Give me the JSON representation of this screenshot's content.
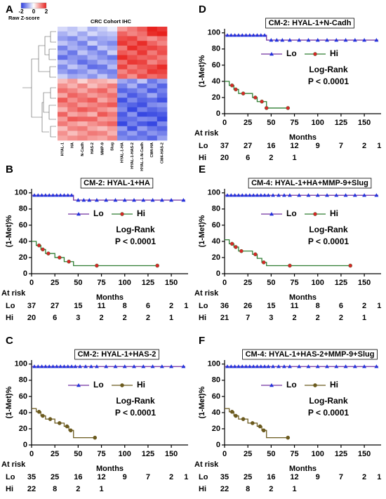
{
  "chart_data": [
    {
      "type": "heatmap",
      "panel": "A",
      "title": "CRC Cohort IHC",
      "colorbar_label": "Raw Z-score",
      "colorbar_ticks": [
        -2,
        0,
        2
      ],
      "zlim": [
        -2,
        2
      ],
      "colors": [
        "#2c3ee0",
        "#ffffff",
        "#e8221e"
      ],
      "columns": [
        "HYAL-1",
        "HA",
        "N-Cadh",
        "HAS-2",
        "MMP-9",
        "Slug",
        "HYAL-1-HA",
        "HYAL-1-HAS-2",
        "HYAL-1-N-Cadh",
        "CM4-HA",
        "CM4-HAS-2"
      ],
      "rows": [
        null,
        null,
        null,
        null,
        null,
        null,
        null,
        null,
        null,
        null,
        null,
        null,
        null,
        null,
        null,
        null,
        null,
        null,
        null,
        null,
        null,
        null,
        null,
        null
      ],
      "values": [
        [
          -0.4,
          -0.6,
          -0.3,
          -0.8,
          -0.5,
          -0.2,
          0.9,
          1.2,
          1.5,
          2.0,
          1.8
        ],
        [
          -0.8,
          -0.5,
          -0.9,
          -0.4,
          -0.7,
          -0.6,
          1.4,
          1.1,
          1.3,
          1.9,
          2.0
        ],
        [
          -1.0,
          -1.2,
          -0.7,
          -1.1,
          -0.9,
          -0.8,
          1.6,
          1.7,
          1.2,
          1.0,
          1.3
        ],
        [
          -0.6,
          -0.9,
          -1.3,
          -0.5,
          -1.0,
          -1.2,
          1.8,
          1.5,
          1.9,
          1.4,
          1.1
        ],
        [
          -1.3,
          -0.8,
          -1.0,
          -1.4,
          -0.6,
          -0.9,
          1.2,
          1.9,
          1.6,
          1.7,
          1.5
        ],
        [
          -0.9,
          -1.4,
          -0.6,
          -1.0,
          -1.3,
          -0.5,
          1.5,
          1.3,
          1.8,
          1.2,
          1.6
        ],
        [
          -1.5,
          -1.1,
          -1.2,
          -0.8,
          -1.1,
          -1.4,
          1.9,
          1.6,
          1.4,
          1.5,
          1.2
        ],
        [
          -0.7,
          -1.0,
          -1.5,
          -1.2,
          -0.8,
          -1.0,
          1.3,
          1.8,
          1.7,
          1.1,
          1.4
        ],
        [
          -1.2,
          -0.6,
          -0.9,
          -1.5,
          -1.4,
          -0.7,
          1.7,
          1.2,
          1.5,
          1.6,
          1.9
        ],
        [
          -1.0,
          -1.3,
          -1.1,
          -0.7,
          -1.2,
          -1.3,
          1.1,
          1.5,
          1.3,
          1.8,
          1.7
        ],
        [
          -0.5,
          -0.9,
          -0.8,
          -1.1,
          -0.6,
          -1.1,
          1.4,
          1.0,
          1.6,
          1.3,
          1.5
        ],
        [
          0.6,
          0.9,
          0.4,
          0.8,
          0.7,
          0.5,
          -0.9,
          -1.2,
          -0.6,
          -1.4,
          -1.0
        ],
        [
          1.0,
          0.7,
          1.1,
          0.6,
          0.9,
          1.2,
          -1.3,
          -0.8,
          -1.5,
          -1.1,
          -1.6
        ],
        [
          1.3,
          1.1,
          0.8,
          1.2,
          1.4,
          0.9,
          -1.6,
          -1.4,
          -1.1,
          -1.7,
          -1.3
        ],
        [
          0.8,
          1.4,
          1.2,
          0.9,
          1.1,
          1.3,
          -1.1,
          -1.7,
          -1.4,
          -0.9,
          -1.5
        ],
        [
          1.5,
          1.0,
          1.3,
          1.5,
          0.8,
          1.1,
          -1.8,
          -1.2,
          -1.6,
          -1.5,
          -1.8
        ],
        [
          1.1,
          1.3,
          0.9,
          1.1,
          1.3,
          1.5,
          -1.4,
          -1.6,
          -1.8,
          -1.2,
          -1.1
        ],
        [
          0.7,
          1.2,
          1.5,
          1.3,
          1.0,
          0.8,
          -1.2,
          -1.9,
          -1.3,
          -1.6,
          -1.4
        ],
        [
          1.4,
          0.8,
          1.0,
          0.7,
          1.5,
          1.2,
          -1.7,
          -1.1,
          -1.9,
          -1.8,
          -1.7
        ],
        [
          0.9,
          1.5,
          1.4,
          1.4,
          0.9,
          1.0,
          -1.5,
          -1.5,
          -1.2,
          -1.3,
          -1.9
        ],
        [
          1.2,
          0.9,
          0.7,
          1.0,
          1.2,
          1.4,
          -1.9,
          -1.3,
          -1.7,
          -1.9,
          -1.2
        ],
        [
          0.6,
          1.1,
          1.2,
          0.8,
          0.6,
          0.9,
          -1.0,
          -1.8,
          -1.0,
          -1.4,
          -1.6
        ],
        [
          1.0,
          0.6,
          0.9,
          1.2,
          1.1,
          0.7,
          -1.4,
          -1.0,
          -1.5,
          -1.1,
          -1.3
        ],
        [
          0.8,
          1.0,
          1.1,
          0.9,
          0.8,
          1.1,
          -1.2,
          -1.4,
          -1.3,
          -1.6,
          -1.0
        ]
      ]
    },
    {
      "type": "km",
      "panel": "B",
      "title": "CM-2: HYAL-1+HA",
      "ylabel": "(1-Met)%",
      "xlabel": "Months",
      "xlim": [
        0,
        168
      ],
      "ylim": [
        0,
        105
      ],
      "xticks": [
        0,
        25,
        50,
        75,
        100,
        125,
        150
      ],
      "yticks": [
        0,
        20,
        40,
        60,
        80,
        100
      ],
      "series": [
        {
          "name": "Lo",
          "color": "#7030a0",
          "marker_color": "#2233dd",
          "marker": "triangle",
          "x": [
            0,
            45,
            165
          ],
          "values": [
            97,
            91,
            91
          ],
          "censored_x": [
            3,
            7,
            11,
            15,
            19,
            23,
            27,
            31,
            35,
            39,
            43,
            50,
            56,
            62,
            70,
            80,
            90,
            100,
            110,
            120,
            130,
            140,
            150,
            163
          ]
        },
        {
          "name": "Hi",
          "color": "#2e7d32",
          "marker_color": "#d62728",
          "marker": "circle",
          "x": [
            0,
            5,
            10,
            15,
            25,
            35,
            45,
            135
          ],
          "values": [
            40,
            35,
            30,
            25,
            20,
            15,
            10,
            10
          ],
          "censored_x": [
            8,
            12,
            18,
            30,
            40,
            70,
            135
          ]
        }
      ],
      "annotations": [
        "Log-Rank",
        "P < 0.0001"
      ],
      "at_risk": {
        "label": "At risk",
        "rows": [
          {
            "name": "Lo",
            "counts": [
              37,
              27,
              15,
              11,
              8,
              6,
              2,
              1
            ]
          },
          {
            "name": "Hi",
            "counts": [
              20,
              6,
              3,
              2,
              2,
              2,
              1
            ]
          }
        ]
      }
    },
    {
      "type": "km",
      "panel": "C",
      "title": "CM-2: HYAL-1+HAS-2",
      "ylabel": "(1-Met)%",
      "xlabel": "Months",
      "xlim": [
        0,
        168
      ],
      "ylim": [
        0,
        105
      ],
      "xticks": [
        0,
        25,
        50,
        75,
        100,
        125,
        150
      ],
      "yticks": [
        0,
        20,
        40,
        60,
        80,
        100
      ],
      "series": [
        {
          "name": "Lo",
          "color": "#7030a0",
          "marker_color": "#2233dd",
          "marker": "triangle",
          "x": [
            0,
            165
          ],
          "values": [
            97,
            97
          ],
          "censored_x": [
            3,
            7,
            11,
            15,
            19,
            23,
            27,
            31,
            35,
            39,
            43,
            47,
            52,
            58,
            64,
            70,
            80,
            90,
            100,
            110,
            120,
            130,
            140,
            150,
            163
          ]
        },
        {
          "name": "Hi",
          "color": "#6b5a1e",
          "marker_color": "#6b5a1e",
          "marker": "circle",
          "x": [
            0,
            5,
            10,
            15,
            25,
            35,
            40,
            45,
            68
          ],
          "values": [
            45,
            41,
            36,
            32,
            27,
            23,
            18,
            9,
            9
          ],
          "censored_x": [
            8,
            12,
            20,
            30,
            38,
            42,
            68
          ]
        }
      ],
      "annotations": [
        "Log-Rank",
        "P < 0.0001"
      ],
      "at_risk": {
        "label": "At risk",
        "rows": [
          {
            "name": "Lo",
            "counts": [
              35,
              25,
              16,
              12,
              9,
              7,
              2,
              1
            ]
          },
          {
            "name": "Hi",
            "counts": [
              22,
              8,
              2,
              1
            ]
          }
        ]
      }
    },
    {
      "type": "km",
      "panel": "D",
      "title": "CM-2: HYAL-1+N-Cadh",
      "ylabel": "(1-Met)%",
      "xlabel": "Months",
      "xlim": [
        0,
        168
      ],
      "ylim": [
        0,
        105
      ],
      "xticks": [
        0,
        25,
        50,
        75,
        100,
        125,
        150
      ],
      "yticks": [
        0,
        20,
        40,
        60,
        80,
        100
      ],
      "series": [
        {
          "name": "Lo",
          "color": "#7030a0",
          "marker_color": "#2233dd",
          "marker": "triangle",
          "x": [
            0,
            45,
            165
          ],
          "values": [
            97,
            91,
            91
          ],
          "censored_x": [
            3,
            7,
            11,
            15,
            19,
            23,
            27,
            31,
            35,
            39,
            43,
            50,
            56,
            62,
            70,
            80,
            90,
            100,
            110,
            120,
            130,
            140,
            150,
            163
          ]
        },
        {
          "name": "Hi",
          "color": "#2e7d32",
          "marker_color": "#d62728",
          "marker": "circle",
          "x": [
            0,
            5,
            10,
            15,
            30,
            35,
            45,
            68
          ],
          "values": [
            40,
            35,
            30,
            25,
            20,
            15,
            7,
            7
          ],
          "censored_x": [
            8,
            12,
            20,
            33,
            40,
            45,
            68
          ]
        }
      ],
      "annotations": [
        "Log-Rank",
        "P < 0.0001"
      ],
      "at_risk": {
        "label": "At risk",
        "rows": [
          {
            "name": "Lo",
            "counts": [
              37,
              27,
              16,
              12,
              9,
              7,
              2,
              1
            ]
          },
          {
            "name": "Hi",
            "counts": [
              20,
              6,
              2,
              1
            ]
          }
        ]
      }
    },
    {
      "type": "km",
      "panel": "E",
      "title": "CM-4: HYAL-1+HA+MMP-9+Slug",
      "ylabel": "(1-Met)%",
      "xlabel": "Months",
      "xlim": [
        0,
        168
      ],
      "ylim": [
        0,
        105
      ],
      "xticks": [
        0,
        25,
        50,
        75,
        100,
        125,
        150
      ],
      "yticks": [
        0,
        20,
        40,
        60,
        80,
        100
      ],
      "series": [
        {
          "name": "Lo",
          "color": "#7030a0",
          "marker_color": "#2233dd",
          "marker": "triangle",
          "x": [
            0,
            165
          ],
          "values": [
            97,
            97
          ],
          "censored_x": [
            3,
            7,
            11,
            15,
            19,
            23,
            27,
            31,
            35,
            39,
            43,
            47,
            52,
            58,
            64,
            70,
            80,
            90,
            100,
            110,
            120,
            130,
            140,
            150,
            163
          ]
        },
        {
          "name": "Hi",
          "color": "#2e7d32",
          "marker_color": "#d62728",
          "marker": "circle",
          "x": [
            0,
            5,
            10,
            15,
            30,
            35,
            40,
            45,
            135
          ],
          "values": [
            42,
            37,
            33,
            28,
            24,
            19,
            14,
            10,
            10
          ],
          "censored_x": [
            8,
            12,
            18,
            33,
            42,
            70,
            135
          ]
        }
      ],
      "annotations": [
        "Log-Rank",
        "P < 0.0001"
      ],
      "at_risk": {
        "label": "At risk",
        "rows": [
          {
            "name": "Lo",
            "counts": [
              36,
              26,
              15,
              11,
              8,
              6,
              2,
              1
            ]
          },
          {
            "name": "Hi",
            "counts": [
              21,
              7,
              3,
              2,
              2,
              2,
              1
            ]
          }
        ]
      }
    },
    {
      "type": "km",
      "panel": "F",
      "title": "CM-4: HYAL-1+HAS-2+MMP-9+Slug",
      "ylabel": "(1-Met)%",
      "xlabel": "Months",
      "xlim": [
        0,
        168
      ],
      "ylim": [
        0,
        105
      ],
      "xticks": [
        0,
        25,
        50,
        75,
        100,
        125,
        150
      ],
      "yticks": [
        0,
        20,
        40,
        60,
        80,
        100
      ],
      "series": [
        {
          "name": "Lo",
          "color": "#7030a0",
          "marker_color": "#2233dd",
          "marker": "triangle",
          "x": [
            0,
            165
          ],
          "values": [
            97,
            97
          ],
          "censored_x": [
            3,
            7,
            11,
            15,
            19,
            23,
            27,
            31,
            35,
            39,
            43,
            47,
            52,
            58,
            64,
            70,
            80,
            90,
            100,
            110,
            120,
            130,
            140,
            150,
            163
          ]
        },
        {
          "name": "Hi",
          "color": "#6b5a1e",
          "marker_color": "#6b5a1e",
          "marker": "circle",
          "x": [
            0,
            5,
            10,
            15,
            25,
            35,
            40,
            45,
            68
          ],
          "values": [
            45,
            41,
            36,
            32,
            27,
            23,
            18,
            9,
            9
          ],
          "censored_x": [
            8,
            12,
            20,
            30,
            38,
            42,
            68
          ]
        }
      ],
      "annotations": [
        "Log-Rank",
        "P < 0.0001"
      ],
      "at_risk": {
        "label": "At risk",
        "rows": [
          {
            "name": "Lo",
            "counts": [
              35,
              25,
              16,
              12,
              9,
              7,
              2,
              1
            ]
          },
          {
            "name": "Hi",
            "counts": [
              22,
              8,
              2,
              1
            ]
          }
        ]
      }
    }
  ]
}
